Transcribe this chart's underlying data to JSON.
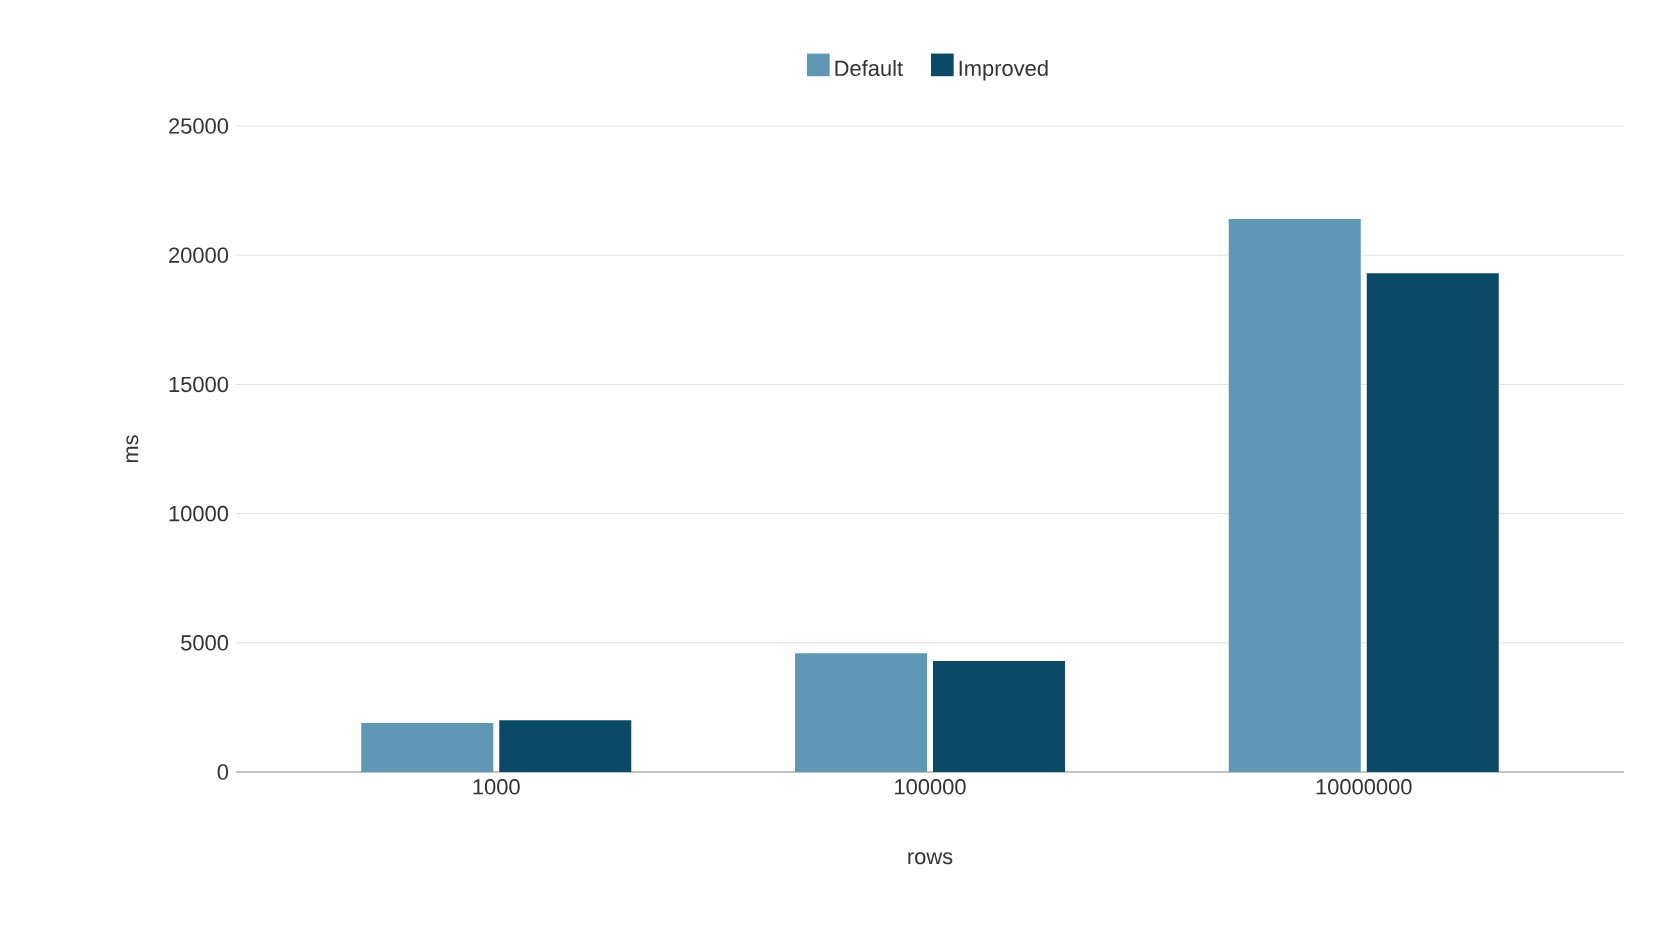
{
  "chart_data": {
    "type": "bar",
    "xlabel": "rows",
    "ylabel": "ms",
    "categories": [
      "1000",
      "100000",
      "10000000"
    ],
    "series": [
      {
        "name": "Default",
        "color": "#5f97b5",
        "values": [
          1900,
          4600,
          21400
        ]
      },
      {
        "name": "Improved",
        "color": "#0b4a66",
        "values": [
          2000,
          4300,
          19300
        ]
      }
    ],
    "ylim": [
      0,
      25000
    ],
    "yticks": [
      0,
      5000,
      10000,
      15000,
      20000,
      25000
    ],
    "grid": "y",
    "legend": "top"
  }
}
